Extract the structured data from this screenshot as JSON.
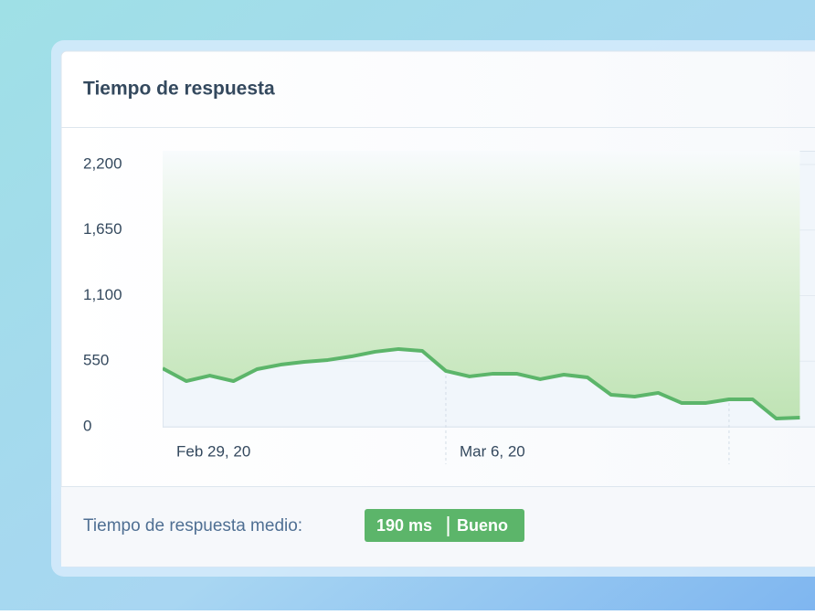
{
  "header": {
    "title": "Tiempo de respuesta"
  },
  "chart_data": {
    "type": "line",
    "categories": [
      "Feb 29, 20",
      null,
      null,
      null,
      null,
      null,
      null,
      null,
      null,
      null,
      null,
      null,
      "Mar 6, 20",
      null,
      null,
      null,
      null,
      null,
      null,
      null,
      null,
      null,
      null,
      null,
      null,
      null,
      null,
      null
    ],
    "series": [
      {
        "name": "Tiempo de respuesta",
        "color": "#5cb56a",
        "values": [
          490,
          383,
          429,
          383,
          483,
          521,
          544,
          560,
          590,
          629,
          652,
          636,
          468,
          422,
          445,
          445,
          399,
          437,
          414,
          268,
          253,
          284,
          199,
          199,
          230,
          230,
          69,
          77
        ]
      }
    ],
    "ylim": [
      0,
      2315
    ],
    "yticks": [
      0,
      550,
      {
        "value": 1100,
        "label": "1,100"
      },
      {
        "value": 1650,
        "label": "1,650"
      },
      {
        "value": 2200,
        "label": "2,200"
      }
    ],
    "grid": true
  },
  "footer": {
    "label": "Tiempo de respuesta medio:",
    "badge_value": "190 ms",
    "badge_status": "Bueno"
  }
}
